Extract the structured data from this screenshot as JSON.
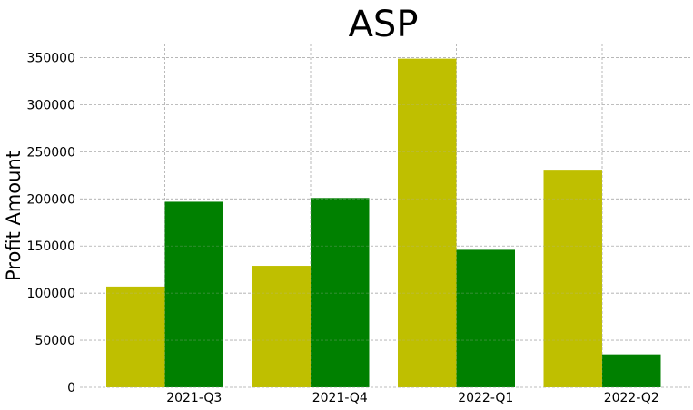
{
  "chart_data": {
    "type": "bar",
    "title": "ASP",
    "xlabel": "",
    "ylabel": "Profit Amount",
    "categories": [
      "2021-Q3",
      "2021-Q4",
      "2022-Q1",
      "2022-Q2"
    ],
    "series": [
      {
        "values": [
          107000,
          129000,
          349000,
          231000
        ],
        "color": "#bfbf00"
      },
      {
        "values": [
          197000,
          201000,
          146000,
          35000
        ],
        "color": "#008000"
      }
    ],
    "ylim": [
      0,
      365000
    ],
    "yticks": [
      0,
      50000,
      100000,
      150000,
      200000,
      250000,
      300000,
      350000
    ],
    "grid": true,
    "legend": "none"
  }
}
